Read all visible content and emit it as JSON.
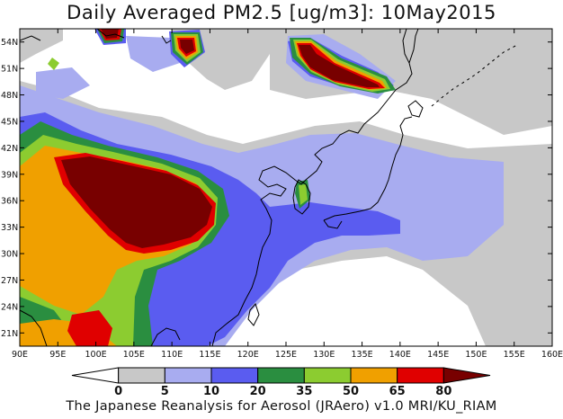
{
  "title": "Daily Averaged PM2.5 [ug/m3]: 10May2015",
  "footer": "The Japanese Reanalysis for Aerosol (JRAero) v1.0 MRI/KU_RIAM",
  "map": {
    "lon_range": [
      90,
      160
    ],
    "lat_range": [
      19.5,
      55.5
    ],
    "x_ticks": [
      "90E",
      "95E",
      "100E",
      "105E",
      "110E",
      "115E",
      "120E",
      "125E",
      "130E",
      "135E",
      "140E",
      "145E",
      "150E",
      "155E",
      "160E"
    ],
    "y_ticks": [
      "54N",
      "51N",
      "48N",
      "45N",
      "42N",
      "39N",
      "36N",
      "33N",
      "30N",
      "27N",
      "24N",
      "21N"
    ],
    "grid": false
  },
  "colorbar": {
    "levels": [
      "0",
      "5",
      "10",
      "20",
      "35",
      "50",
      "65",
      "80"
    ],
    "colors": [
      "#ffffff",
      "#c8c8c8",
      "#a8acf0",
      "#5a5cf0",
      "#2a8e40",
      "#8ccc30",
      "#f0a000",
      "#e00000",
      "#780000"
    ],
    "palette_names": [
      "white",
      "light-gray",
      "lavender",
      "blue",
      "green",
      "yellow-green",
      "orange",
      "red",
      "dark-red"
    ]
  },
  "palette": {
    "coast": "#000000",
    "background": "#ffffff"
  }
}
